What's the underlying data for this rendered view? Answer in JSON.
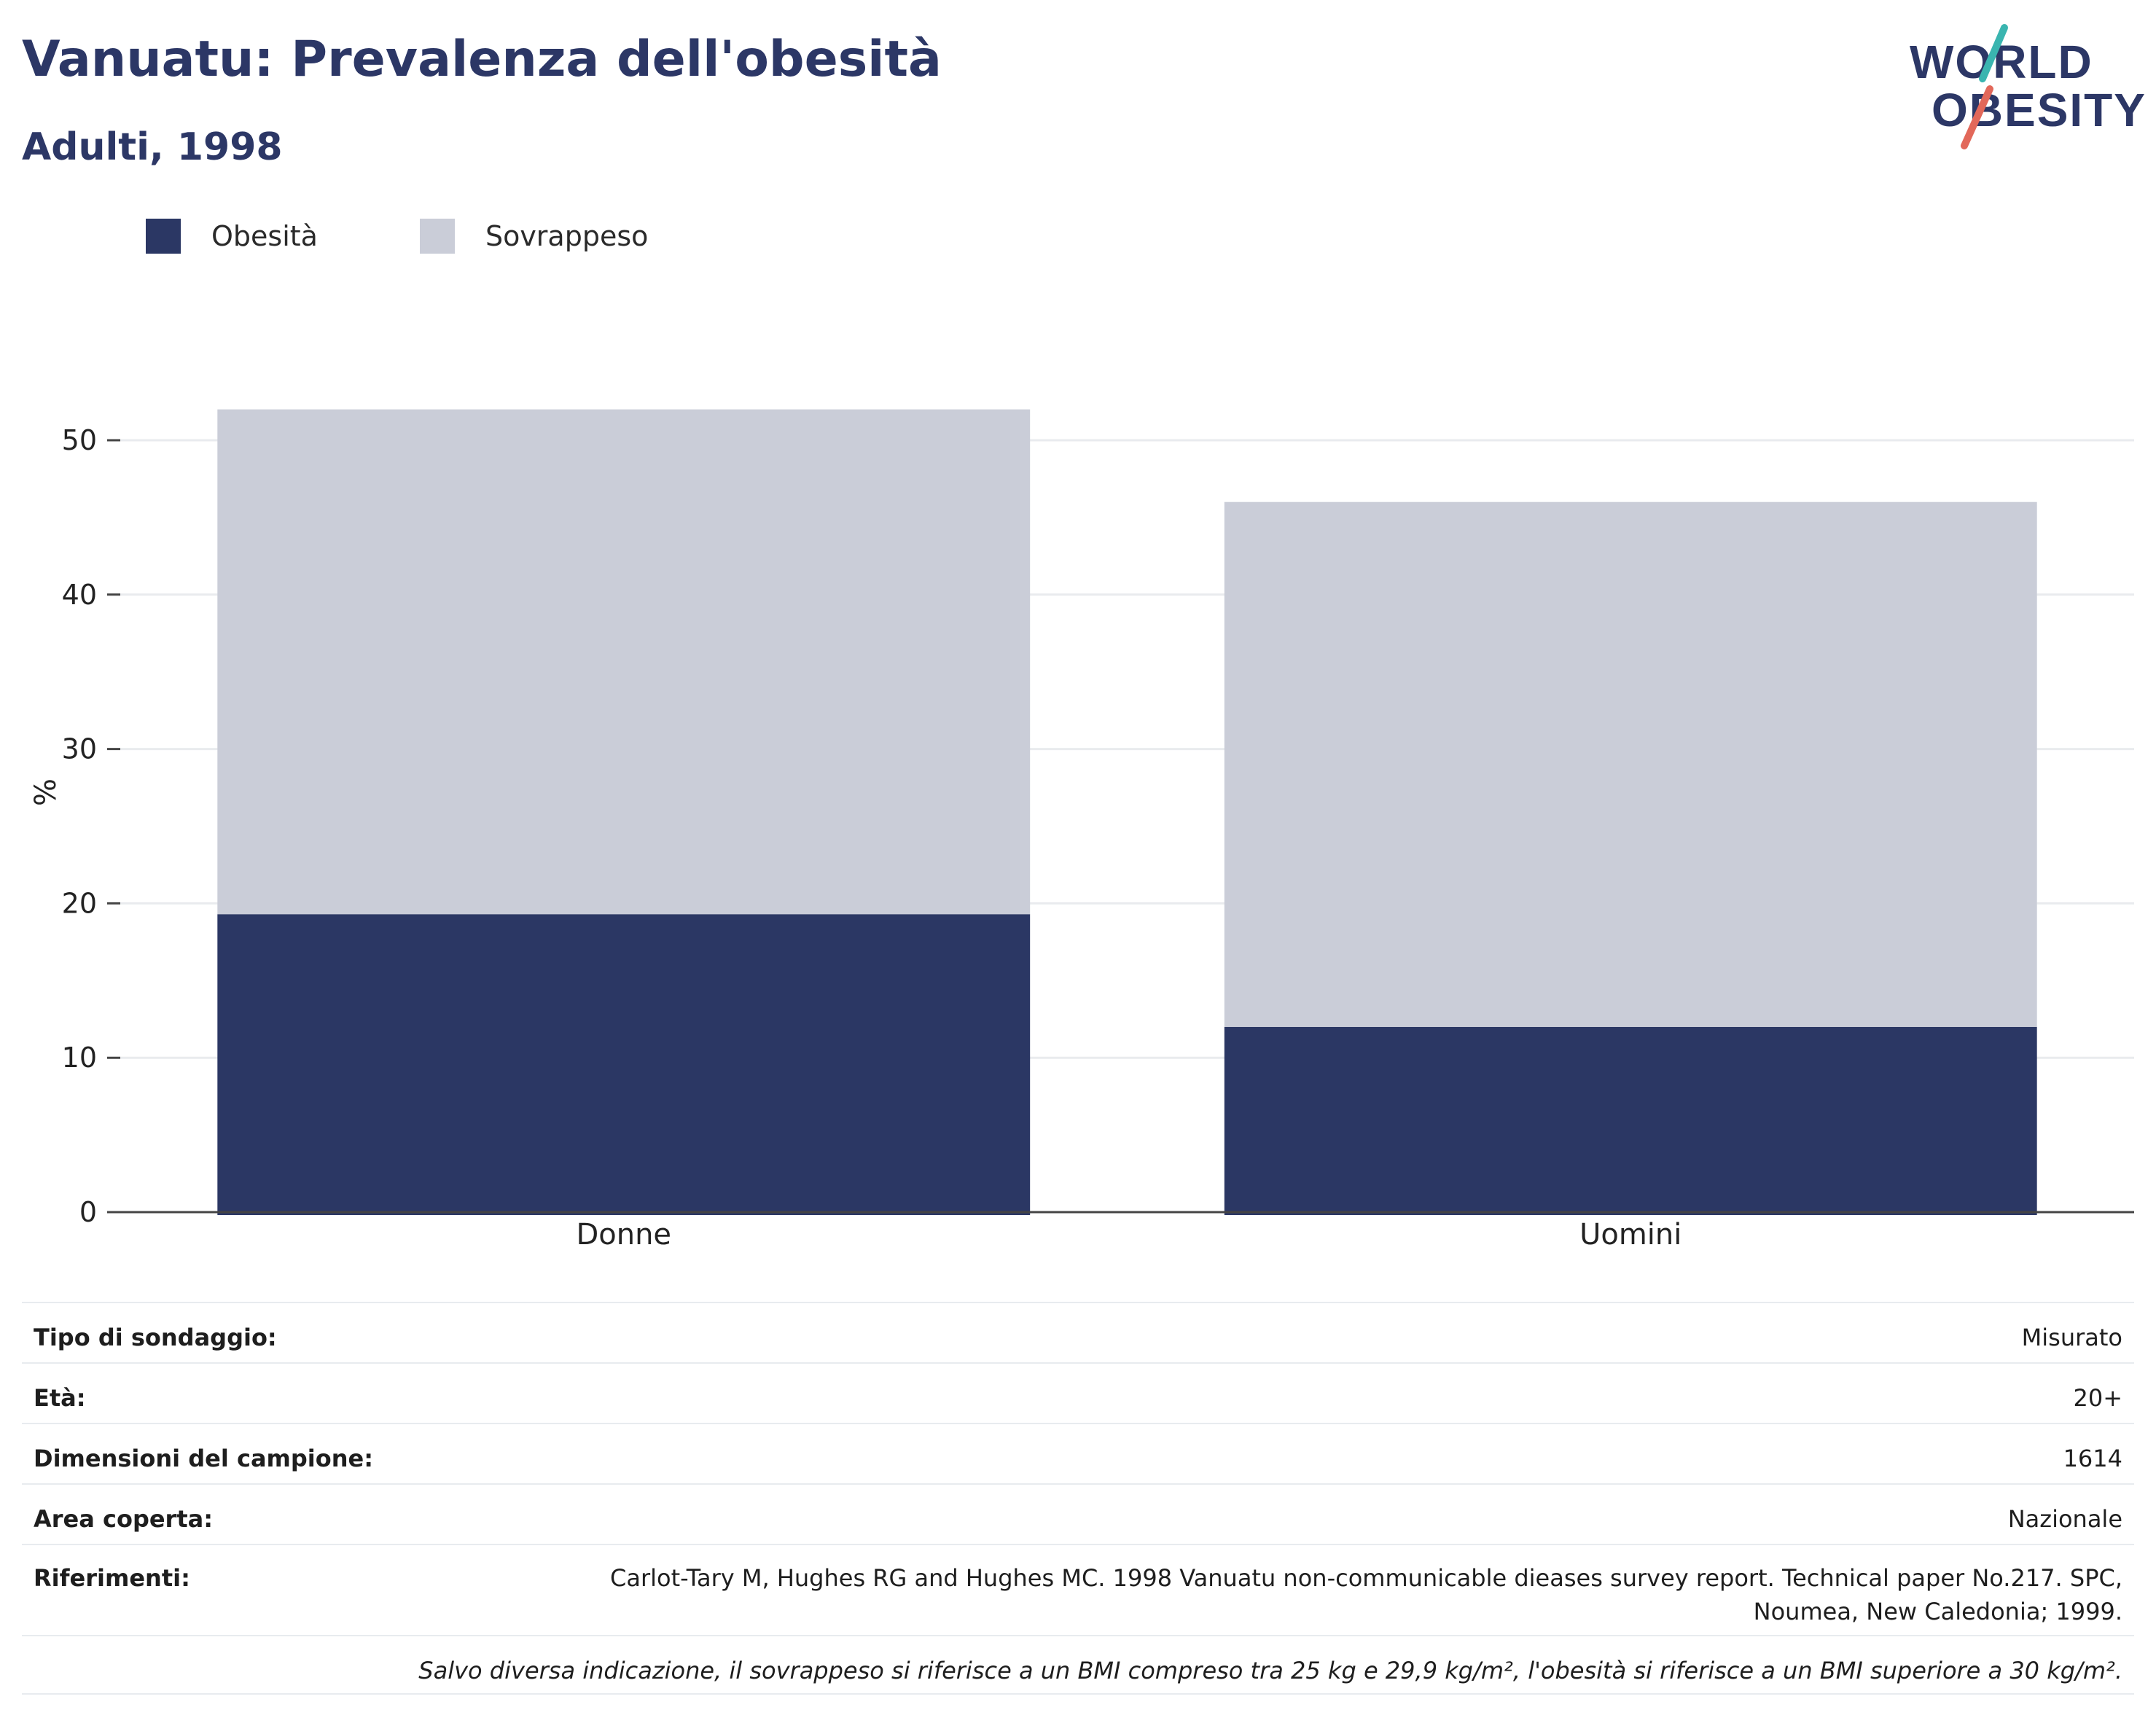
{
  "header": {
    "title": "Vanuatu: Prevalenza dell'obesità",
    "subtitle": "Adulti, 1998"
  },
  "logo": {
    "line1": "WORLD",
    "line2": "OBESITY",
    "slash_colors": [
      "#3ab5b0",
      "#e2685a"
    ]
  },
  "colors": {
    "obesity": "#2b3764",
    "overweight": "#cacdd8",
    "grid": "#e9ebee",
    "axis": "#444444"
  },
  "legend": [
    {
      "label": "Obesità",
      "color": "#2b3764"
    },
    {
      "label": "Sovrappeso",
      "color": "#cacdd8"
    }
  ],
  "chart_data": {
    "type": "bar",
    "stacked": true,
    "categories": [
      "Donne",
      "Uomini"
    ],
    "series": [
      {
        "name": "Obesità",
        "values": [
          19.3,
          12.0
        ]
      },
      {
        "name": "Sovrappeso",
        "values": [
          32.7,
          34.0
        ]
      }
    ],
    "ylabel": "%",
    "ylim": [
      0,
      52
    ],
    "yticks": [
      0,
      10,
      20,
      30,
      40,
      50
    ],
    "grid": true,
    "legend_position": "top-left"
  },
  "info": {
    "survey_type": {
      "label": "Tipo di sondaggio:",
      "value": "Misurato"
    },
    "age": {
      "label": "Età:",
      "value": "20+"
    },
    "sample_size": {
      "label": "Dimensioni del campione:",
      "value": "1614"
    },
    "area": {
      "label": "Area coperta:",
      "value": "Nazionale"
    },
    "references": {
      "label": "Riferimenti:",
      "value": "Carlot-Tary M, Hughes RG and Hughes MC. 1998 Vanuatu non-communicable dieases survey report. Technical paper No.217. SPC, Noumea, New Caledonia; 1999."
    },
    "note": "Salvo diversa indicazione, il sovrappeso si riferisce a un BMI compreso tra 25 kg e 29,9 kg/m², l'obesità si riferisce a un BMI superiore a 30 kg/m²."
  }
}
